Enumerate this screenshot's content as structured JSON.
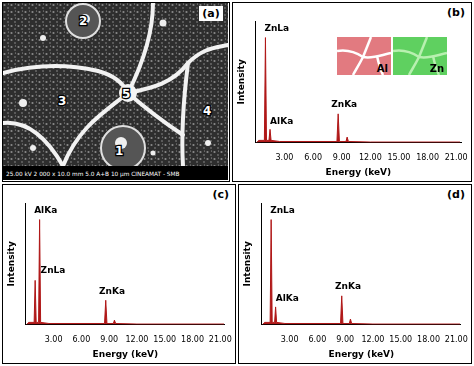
{
  "micrograph": {
    "panel": "(a)",
    "regions": [
      "1",
      "2",
      "3",
      "4",
      "5"
    ],
    "info_bar": [
      "25.00 kV",
      "2 000 x",
      "10.0 mm",
      "5.0",
      "A+B",
      "10 µm",
      "CINEAMAT - SMB"
    ]
  },
  "chart_data": [
    {
      "type": "line",
      "panel": "(b)",
      "x_label": "Energy (keV)",
      "y_label": "Intensity",
      "x": [
        0.1,
        0.3,
        0.9,
        1.01,
        1.12,
        1.38,
        1.49,
        1.6,
        2.5,
        8.5,
        8.63,
        8.76,
        9.45,
        9.57,
        9.7,
        12,
        21.4
      ],
      "values": [
        0,
        2,
        2,
        95,
        2,
        2,
        12,
        2,
        1,
        1,
        26,
        1,
        1,
        5,
        1,
        0.5,
        0.5
      ],
      "color": "#b01818",
      "xlim": [
        0,
        21.5
      ],
      "ylim": [
        0,
        110
      ],
      "xticks": [
        {
          "value": 3,
          "label": "3.00"
        },
        {
          "value": 6,
          "label": "6.00"
        },
        {
          "value": 9,
          "label": "9.00"
        },
        {
          "value": 12,
          "label": "12.00"
        },
        {
          "value": 15,
          "label": "15.00"
        },
        {
          "value": 18,
          "label": "18.00"
        },
        {
          "value": 21,
          "label": "21.00"
        }
      ],
      "tick_labels": "x",
      "grid": false,
      "annotations": [
        {
          "text": "ZnLa",
          "x": 0.9,
          "y": 99
        },
        {
          "text": "AlKa",
          "x": 1.5,
          "y": 15
        },
        {
          "text": "ZnKa",
          "x": 7.9,
          "y": 30
        }
      ],
      "insets": [
        {
          "label": "Al",
          "color": "#e27a80"
        },
        {
          "label": "Zn",
          "color": "#5fd060"
        }
      ]
    },
    {
      "type": "line",
      "panel": "(c)",
      "x_label": "Energy (keV)",
      "y_label": "Intensity",
      "x": [
        0.1,
        0.3,
        0.9,
        1.01,
        1.12,
        1.38,
        1.49,
        1.6,
        2.5,
        8.5,
        8.63,
        8.76,
        9.45,
        9.57,
        9.7,
        12,
        21.4
      ],
      "values": [
        0,
        2,
        2,
        40,
        2,
        2,
        95,
        2,
        1,
        1,
        22,
        1,
        1,
        4,
        1,
        0.5,
        0.5
      ],
      "color": "#b01818",
      "xlim": [
        0,
        21.5
      ],
      "ylim": [
        0,
        110
      ],
      "xticks": [
        {
          "value": 3,
          "label": "3.00"
        },
        {
          "value": 6,
          "label": "6.00"
        },
        {
          "value": 9,
          "label": "9.00"
        },
        {
          "value": 12,
          "label": "12.00"
        },
        {
          "value": 15,
          "label": "15.00"
        },
        {
          "value": 18,
          "label": "18.00"
        },
        {
          "value": 21,
          "label": "21.00"
        }
      ],
      "tick_labels": "x",
      "grid": false,
      "annotations": [
        {
          "text": "AlKa",
          "x": 0.9,
          "y": 99
        },
        {
          "text": "ZnLa",
          "x": 1.6,
          "y": 45
        },
        {
          "text": "ZnKa",
          "x": 7.9,
          "y": 26
        }
      ]
    },
    {
      "type": "line",
      "panel": "(d)",
      "x_label": "Energy (keV)",
      "y_label": "Intensity",
      "x": [
        0.1,
        0.3,
        0.9,
        1.01,
        1.12,
        1.38,
        1.49,
        1.6,
        2.5,
        8.5,
        8.63,
        8.76,
        9.45,
        9.57,
        9.7,
        12,
        21.4
      ],
      "values": [
        0,
        2,
        2,
        95,
        2,
        2,
        16,
        2,
        1,
        1,
        26,
        1,
        1,
        5,
        1,
        0.5,
        0.5
      ],
      "color": "#b01818",
      "xlim": [
        0,
        21.5
      ],
      "ylim": [
        0,
        110
      ],
      "xticks": [
        {
          "value": 3,
          "label": "3.00"
        },
        {
          "value": 6,
          "label": "6.00"
        },
        {
          "value": 9,
          "label": "9.00"
        },
        {
          "value": 12,
          "label": "12.00"
        },
        {
          "value": 15,
          "label": "15.00"
        },
        {
          "value": 18,
          "label": "18.00"
        },
        {
          "value": 21,
          "label": "21.00"
        }
      ],
      "tick_labels": "x",
      "grid": false,
      "annotations": [
        {
          "text": "ZnLa",
          "x": 0.9,
          "y": 99
        },
        {
          "text": "AlKa",
          "x": 1.5,
          "y": 19
        },
        {
          "text": "ZnKa",
          "x": 7.9,
          "y": 30
        }
      ]
    }
  ]
}
